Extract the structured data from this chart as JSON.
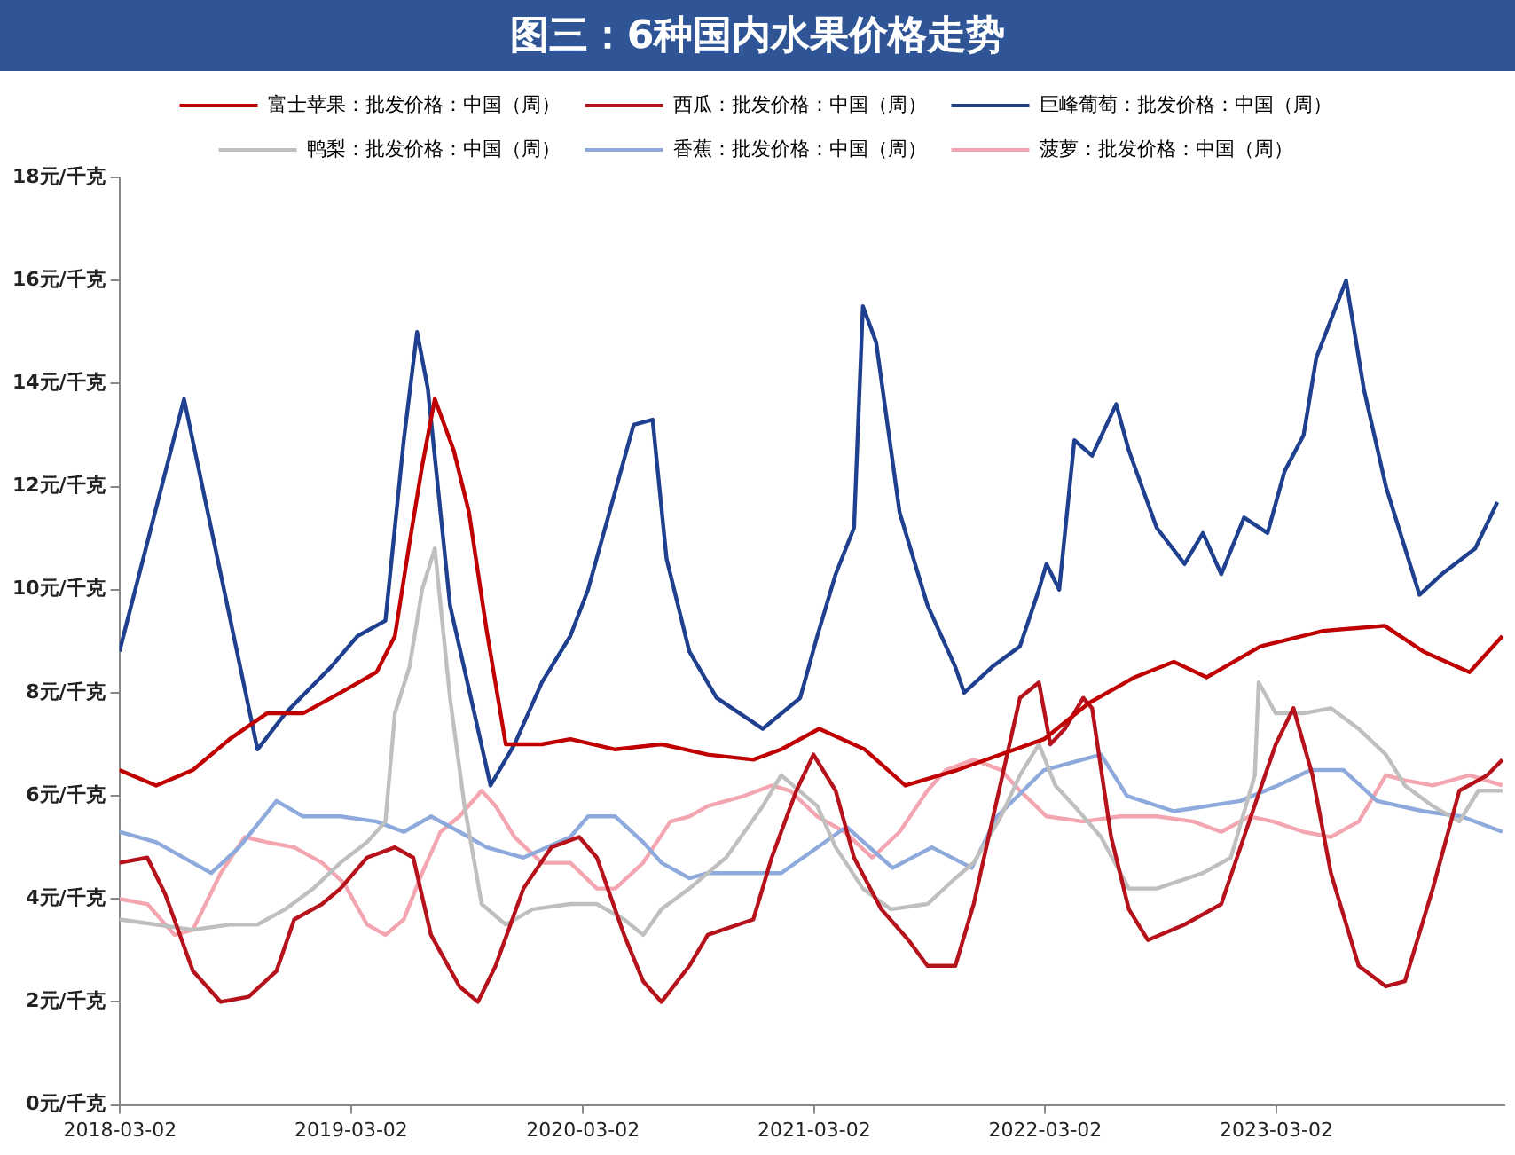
{
  "chart_data": {
    "type": "line",
    "title": "图三：6种国内水果价格走势",
    "xlim": [
      "2018-03-01",
      "2024-02-25"
    ],
    "xticks": [
      {
        "value": "2018-03-02",
        "label": "2018-03-02"
      },
      {
        "value": "2019-03-02",
        "label": "2019-03-02"
      },
      {
        "value": "2020-03-02",
        "label": "2020-03-02"
      },
      {
        "value": "2021-03-02",
        "label": "2021-03-02"
      },
      {
        "value": "2022-03-02",
        "label": "2022-03-02"
      },
      {
        "value": "2023-03-02",
        "label": "2023-03-02"
      }
    ],
    "ylim": [
      0,
      18
    ],
    "yticks": [
      {
        "value": 0,
        "label": "0元/千克"
      },
      {
        "value": 2,
        "label": "2元/千克"
      },
      {
        "value": 4,
        "label": "4元/千克"
      },
      {
        "value": 6,
        "label": "6元/千克"
      },
      {
        "value": 8,
        "label": "8元/千克"
      },
      {
        "value": 10,
        "label": "10元/千克"
      },
      {
        "value": 12,
        "label": "12元/千克"
      },
      {
        "value": 14,
        "label": "14元/千克"
      },
      {
        "value": 16,
        "label": "16元/千克"
      },
      {
        "value": 18,
        "label": "18元/千克"
      }
    ],
    "grid": false,
    "legend": "top",
    "marker": "none",
    "line_style": "solid",
    "series": [
      {
        "name": "富士苹果：批发价格：中国（周）",
        "color": "#c00000",
        "x": [
          "2018-03-01",
          "2018-04-28",
          "2018-06-25",
          "2018-08-22",
          "2018-10-20",
          "2018-12-16",
          "2019-02-13",
          "2019-04-11",
          "2019-05-10",
          "2019-06-02",
          "2019-06-22",
          "2019-07-12",
          "2019-08-11",
          "2019-09-04",
          "2019-10-02",
          "2019-11-01",
          "2019-12-28",
          "2020-02-11",
          "2020-04-22",
          "2020-07-04",
          "2020-09-15",
          "2020-11-26",
          "2021-01-09",
          "2021-03-10",
          "2021-05-21",
          "2021-07-24",
          "2021-10-14",
          "2022-02-28",
          "2022-05-10",
          "2022-07-21",
          "2022-09-21",
          "2022-11-12",
          "2023-02-05",
          "2023-05-15",
          "2023-08-20",
          "2023-10-20",
          "2024-01-01",
          "2024-02-22"
        ],
        "values": [
          6.5,
          6.2,
          6.5,
          7.1,
          7.6,
          7.6,
          8.0,
          8.4,
          9.1,
          10.9,
          12.4,
          13.7,
          12.7,
          11.5,
          9.2,
          7.0,
          7.0,
          7.1,
          6.9,
          7.0,
          6.8,
          6.7,
          6.9,
          7.3,
          6.9,
          6.2,
          6.5,
          7.1,
          7.8,
          8.3,
          8.6,
          8.3,
          8.9,
          9.2,
          9.3,
          8.8,
          8.4,
          9.1
        ]
      },
      {
        "name": "西瓜：批发价格：中国（周）",
        "color": "#b5121b",
        "x": [
          "2018-03-01",
          "2018-04-14",
          "2018-05-12",
          "2018-06-25",
          "2018-08-08",
          "2018-09-21",
          "2018-11-04",
          "2018-12-02",
          "2019-01-15",
          "2019-02-13",
          "2019-03-27",
          "2019-05-10",
          "2019-06-08",
          "2019-07-06",
          "2019-08-20",
          "2019-09-18",
          "2019-10-16",
          "2019-11-29",
          "2020-01-12",
          "2020-02-25",
          "2020-03-24",
          "2020-05-06",
          "2020-06-05",
          "2020-07-04",
          "2020-08-17",
          "2020-09-15",
          "2020-11-26",
          "2020-12-25",
          "2021-02-02",
          "2021-03-01",
          "2021-04-05",
          "2021-05-04",
          "2021-06-16",
          "2021-07-29",
          "2021-08-28",
          "2021-10-11",
          "2021-11-09",
          "2021-12-08",
          "2022-01-21",
          "2022-02-20",
          "2022-03-10",
          "2022-04-02",
          "2022-05-01",
          "2022-05-15",
          "2022-06-14",
          "2022-07-12",
          "2022-08-11",
          "2022-10-08",
          "2022-12-05",
          "2023-01-18",
          "2023-03-01",
          "2023-03-29",
          "2023-04-28",
          "2023-05-27",
          "2023-07-10",
          "2023-08-22",
          "2023-09-21",
          "2023-11-04",
          "2023-12-16",
          "2024-01-29",
          "2024-02-22"
        ],
        "values": [
          4.7,
          4.8,
          4.1,
          2.6,
          2.0,
          2.1,
          2.6,
          3.6,
          3.9,
          4.2,
          4.8,
          5.0,
          4.8,
          3.3,
          2.3,
          2.0,
          2.7,
          4.2,
          5.0,
          5.2,
          4.8,
          3.3,
          2.4,
          2.0,
          2.7,
          3.3,
          3.6,
          4.8,
          6.1,
          6.8,
          6.1,
          4.8,
          3.8,
          3.2,
          2.7,
          2.7,
          3.9,
          5.5,
          7.9,
          8.2,
          7.0,
          7.3,
          7.9,
          7.7,
          5.2,
          3.8,
          3.2,
          3.5,
          3.9,
          5.5,
          7.0,
          7.7,
          6.4,
          4.5,
          2.7,
          2.3,
          2.4,
          4.2,
          6.1,
          6.4,
          6.7
        ]
      },
      {
        "name": "巨峰葡萄：批发价格：中国（周）",
        "color": "#1f3f8f",
        "x": [
          "2018-03-01",
          "2018-06-11",
          "2018-10-05",
          "2018-11-18",
          "2019-01-29",
          "2019-03-12",
          "2019-04-25",
          "2019-05-24",
          "2019-06-14",
          "2019-07-01",
          "2019-08-05",
          "2019-09-18",
          "2019-10-08",
          "2019-11-15",
          "2019-12-28",
          "2020-02-11",
          "2020-03-10",
          "2020-05-21",
          "2020-06-20",
          "2020-07-12",
          "2020-08-17",
          "2020-09-29",
          "2020-12-11",
          "2021-02-08",
          "2021-03-07",
          "2021-04-05",
          "2021-05-04",
          "2021-05-18",
          "2021-06-08",
          "2021-07-15",
          "2021-08-28",
          "2021-10-11",
          "2021-10-25",
          "2021-12-08",
          "2022-01-21",
          "2022-02-20",
          "2022-03-04",
          "2022-03-24",
          "2022-04-17",
          "2022-05-15",
          "2022-06-22",
          "2022-07-12",
          "2022-08-25",
          "2022-10-08",
          "2022-11-06",
          "2022-12-05",
          "2023-01-10",
          "2023-02-16",
          "2023-03-15",
          "2023-04-14",
          "2023-05-04",
          "2023-06-20",
          "2023-07-18",
          "2023-08-22",
          "2023-10-14",
          "2023-11-18",
          "2024-01-10",
          "2024-02-14"
        ],
        "values": [
          8.8,
          13.7,
          6.9,
          7.6,
          8.5,
          9.1,
          9.4,
          12.9,
          15.0,
          13.9,
          9.7,
          7.3,
          6.2,
          7.0,
          8.2,
          9.1,
          10.0,
          13.2,
          13.3,
          10.6,
          8.8,
          7.9,
          7.3,
          7.9,
          9.1,
          10.3,
          11.2,
          15.5,
          14.8,
          11.5,
          9.7,
          8.5,
          8.0,
          8.5,
          8.9,
          10.0,
          10.5,
          10.0,
          12.9,
          12.6,
          13.6,
          12.7,
          11.2,
          10.5,
          11.1,
          10.3,
          11.4,
          11.1,
          12.3,
          13.0,
          14.5,
          16.0,
          13.9,
          12.0,
          9.9,
          10.3,
          10.8,
          11.7
        ]
      },
      {
        "name": "鸭梨：批发价格：中国（周）",
        "color": "#bfbfbf",
        "x": [
          "2018-03-01",
          "2018-04-28",
          "2018-06-25",
          "2018-08-22",
          "2018-10-05",
          "2018-11-18",
          "2019-01-01",
          "2019-02-13",
          "2019-03-27",
          "2019-04-25",
          "2019-05-10",
          "2019-06-02",
          "2019-06-22",
          "2019-07-12",
          "2019-08-05",
          "2019-08-28",
          "2019-09-24",
          "2019-11-01",
          "2019-12-14",
          "2020-02-11",
          "2020-03-24",
          "2020-05-06",
          "2020-06-05",
          "2020-07-04",
          "2020-08-17",
          "2020-10-14",
          "2020-12-11",
          "2021-01-09",
          "2021-03-07",
          "2021-04-05",
          "2021-05-18",
          "2021-07-01",
          "2021-08-28",
          "2021-10-11",
          "2021-11-09",
          "2021-12-22",
          "2022-01-21",
          "2022-02-20",
          "2022-03-18",
          "2022-04-17",
          "2022-05-29",
          "2022-07-12",
          "2022-08-25",
          "2022-11-06",
          "2022-12-20",
          "2023-01-27",
          "2023-02-02",
          "2023-03-01",
          "2023-04-14",
          "2023-05-27",
          "2023-07-10",
          "2023-08-22",
          "2023-09-21",
          "2023-11-04",
          "2023-12-16",
          "2024-01-15",
          "2024-02-22"
        ],
        "values": [
          3.6,
          3.5,
          3.4,
          3.5,
          3.5,
          3.8,
          4.2,
          4.7,
          5.1,
          5.5,
          7.6,
          8.5,
          10.0,
          10.8,
          7.9,
          5.8,
          3.9,
          3.5,
          3.8,
          3.9,
          3.9,
          3.6,
          3.3,
          3.8,
          4.2,
          4.8,
          5.8,
          6.4,
          5.8,
          5.0,
          4.2,
          3.8,
          3.9,
          4.4,
          4.7,
          5.6,
          6.4,
          7.0,
          6.2,
          5.8,
          5.2,
          4.2,
          4.2,
          4.5,
          4.8,
          6.4,
          8.2,
          7.6,
          7.6,
          7.7,
          7.3,
          6.8,
          6.2,
          5.8,
          5.5,
          6.1,
          6.1
        ]
      },
      {
        "name": "香蕉：批发价格：中国（周）",
        "color": "#8ea9db",
        "x": [
          "2018-03-01",
          "2018-04-28",
          "2018-06-25",
          "2018-07-24",
          "2018-09-06",
          "2018-11-04",
          "2018-12-16",
          "2019-02-13",
          "2019-04-11",
          "2019-05-24",
          "2019-07-06",
          "2019-08-20",
          "2019-10-02",
          "2019-11-29",
          "2020-02-11",
          "2020-03-10",
          "2020-04-22",
          "2020-06-05",
          "2020-07-04",
          "2020-08-17",
          "2020-09-15",
          "2020-11-26",
          "2021-01-09",
          "2021-04-22",
          "2021-07-04",
          "2021-09-04",
          "2021-11-06",
          "2021-12-16",
          "2022-02-28",
          "2022-05-29",
          "2022-07-09",
          "2022-09-21",
          "2023-01-04",
          "2023-03-04",
          "2023-04-25",
          "2023-06-16",
          "2023-08-08",
          "2023-10-20",
          "2023-12-19",
          "2024-02-22"
        ],
        "values": [
          5.3,
          5.1,
          4.7,
          4.5,
          5.0,
          5.9,
          5.6,
          5.6,
          5.5,
          5.3,
          5.6,
          5.3,
          5.0,
          4.8,
          5.2,
          5.6,
          5.6,
          5.1,
          4.7,
          4.4,
          4.5,
          4.5,
          4.5,
          5.4,
          4.6,
          5.0,
          4.6,
          5.6,
          6.5,
          6.8,
          6.0,
          5.7,
          5.9,
          6.2,
          6.5,
          6.5,
          5.9,
          5.7,
          5.6,
          5.3
        ]
      },
      {
        "name": "菠萝：批发价格：中国（周）",
        "color": "#f4a6b0",
        "x": [
          "2018-03-01",
          "2018-04-14",
          "2018-05-27",
          "2018-06-25",
          "2018-08-08",
          "2018-09-15",
          "2018-10-20",
          "2018-12-02",
          "2019-01-15",
          "2019-02-19",
          "2019-03-27",
          "2019-04-25",
          "2019-05-24",
          "2019-06-22",
          "2019-07-21",
          "2019-08-20",
          "2019-09-24",
          "2019-10-16",
          "2019-11-15",
          "2019-12-28",
          "2020-02-11",
          "2020-03-24",
          "2020-04-22",
          "2020-06-05",
          "2020-07-18",
          "2020-08-17",
          "2020-09-15",
          "2020-11-12",
          "2020-12-25",
          "2021-01-23",
          "2021-03-07",
          "2021-04-19",
          "2021-06-02",
          "2021-07-15",
          "2021-08-28",
          "2021-09-26",
          "2021-11-09",
          "2021-12-22",
          "2022-01-21",
          "2022-03-04",
          "2022-05-01",
          "2022-06-28",
          "2022-08-25",
          "2022-10-22",
          "2022-12-05",
          "2023-01-18",
          "2023-02-25",
          "2023-04-14",
          "2023-05-27",
          "2023-07-10",
          "2023-08-22",
          "2023-09-21",
          "2023-11-04",
          "2024-01-01",
          "2024-02-22"
        ],
        "values": [
          4.0,
          3.9,
          3.3,
          3.4,
          4.5,
          5.2,
          5.1,
          5.0,
          4.7,
          4.3,
          3.5,
          3.3,
          3.6,
          4.5,
          5.3,
          5.6,
          6.1,
          5.8,
          5.2,
          4.7,
          4.7,
          4.2,
          4.2,
          4.7,
          5.5,
          5.6,
          5.8,
          6.0,
          6.2,
          6.1,
          5.6,
          5.3,
          4.8,
          5.3,
          6.1,
          6.5,
          6.7,
          6.5,
          6.1,
          5.6,
          5.5,
          5.6,
          5.6,
          5.5,
          5.3,
          5.6,
          5.5,
          5.3,
          5.2,
          5.5,
          6.4,
          6.3,
          6.2,
          6.4,
          6.2
        ]
      }
    ]
  }
}
